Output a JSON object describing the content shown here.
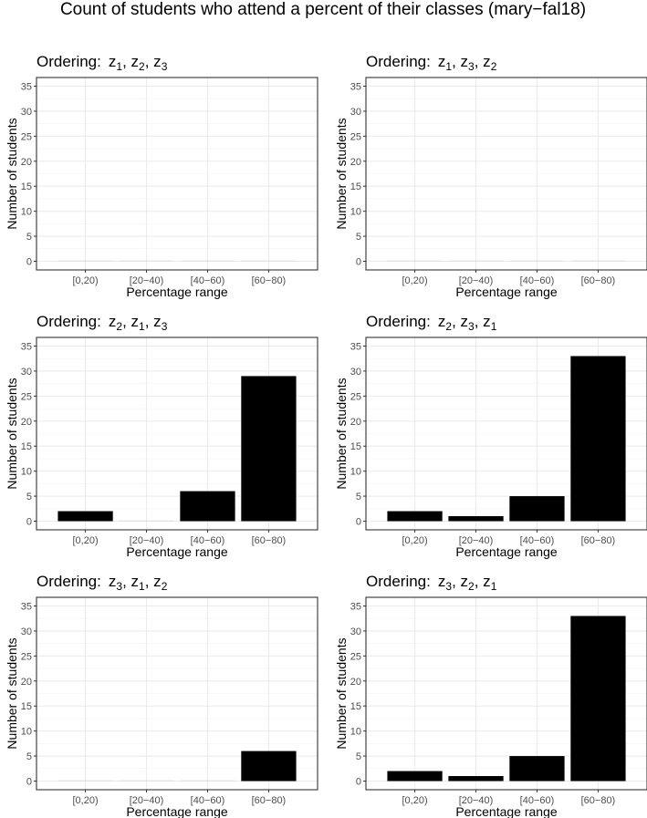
{
  "title": "Count of students who attend a percent of their classes (mary−fal18)",
  "chart_data": [
    {
      "type": "bar",
      "panel_title": "Ordering:",
      "ordering": [
        [
          "z",
          "1"
        ],
        [
          "z",
          "2"
        ],
        [
          "z",
          "3"
        ]
      ],
      "categories": [
        "[0,20)",
        "[20−40)",
        "[40−60)",
        "[60−80)"
      ],
      "values": [
        0,
        0,
        0,
        0
      ],
      "xlabel": "Percentage range",
      "ylabel": "Number of students",
      "ylim": [
        0,
        35
      ],
      "yticks": [
        0,
        5,
        10,
        15,
        20,
        25,
        30,
        35
      ],
      "grid": true
    },
    {
      "type": "bar",
      "panel_title": "Ordering:",
      "ordering": [
        [
          "z",
          "1"
        ],
        [
          "z",
          "3"
        ],
        [
          "z",
          "2"
        ]
      ],
      "categories": [
        "[0,20)",
        "[20−40)",
        "[40−60)",
        "[60−80)"
      ],
      "values": [
        0,
        0,
        0,
        0
      ],
      "xlabel": "Percentage range",
      "ylabel": "Number of students",
      "ylim": [
        0,
        35
      ],
      "yticks": [
        0,
        5,
        10,
        15,
        20,
        25,
        30,
        35
      ],
      "grid": true
    },
    {
      "type": "bar",
      "panel_title": "Ordering:",
      "ordering": [
        [
          "z",
          "2"
        ],
        [
          "z",
          "1"
        ],
        [
          "z",
          "3"
        ]
      ],
      "categories": [
        "[0,20)",
        "[20−40)",
        "[40−60)",
        "[60−80)"
      ],
      "values": [
        2,
        0,
        6,
        29
      ],
      "xlabel": "Percentage range",
      "ylabel": "Number of students",
      "ylim": [
        0,
        35
      ],
      "yticks": [
        0,
        5,
        10,
        15,
        20,
        25,
        30,
        35
      ],
      "grid": true
    },
    {
      "type": "bar",
      "panel_title": "Ordering:",
      "ordering": [
        [
          "z",
          "2"
        ],
        [
          "z",
          "3"
        ],
        [
          "z",
          "1"
        ]
      ],
      "categories": [
        "[0,20)",
        "[20−40)",
        "[40−60)",
        "[60−80)"
      ],
      "values": [
        2,
        1,
        5,
        33
      ],
      "xlabel": "Percentage range",
      "ylabel": "Number of students",
      "ylim": [
        0,
        35
      ],
      "yticks": [
        0,
        5,
        10,
        15,
        20,
        25,
        30,
        35
      ],
      "grid": true
    },
    {
      "type": "bar",
      "panel_title": "Ordering:",
      "ordering": [
        [
          "z",
          "3"
        ],
        [
          "z",
          "1"
        ],
        [
          "z",
          "2"
        ]
      ],
      "categories": [
        "[0,20)",
        "[20−40)",
        "[40−60)",
        "[60−80)"
      ],
      "values": [
        0,
        0,
        0,
        6
      ],
      "xlabel": "Percentage range",
      "ylabel": "Number of students",
      "ylim": [
        0,
        35
      ],
      "yticks": [
        0,
        5,
        10,
        15,
        20,
        25,
        30,
        35
      ],
      "grid": true
    },
    {
      "type": "bar",
      "panel_title": "Ordering:",
      "ordering": [
        [
          "z",
          "3"
        ],
        [
          "z",
          "2"
        ],
        [
          "z",
          "1"
        ]
      ],
      "categories": [
        "[0,20)",
        "[20−40)",
        "[40−60)",
        "[60−80)"
      ],
      "values": [
        2,
        1,
        5,
        33
      ],
      "xlabel": "Percentage range",
      "ylabel": "Number of students",
      "ylim": [
        0,
        35
      ],
      "yticks": [
        0,
        5,
        10,
        15,
        20,
        25,
        30,
        35
      ],
      "grid": true
    }
  ]
}
